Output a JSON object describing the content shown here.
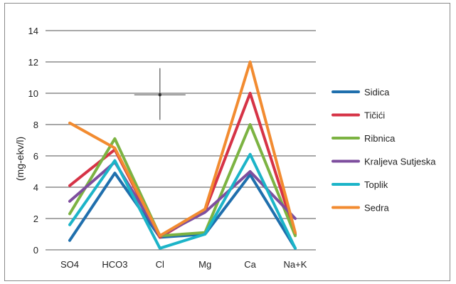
{
  "chart_data": {
    "type": "line",
    "title": "",
    "xlabel": "",
    "ylabel": "(mg-ekv/l)",
    "categories": [
      "SO4",
      "HCO3",
      "Cl",
      "Mg",
      "Ca",
      "Na+K"
    ],
    "ylim": [
      0,
      14
    ],
    "yticks": [
      0,
      2,
      4,
      6,
      8,
      10,
      12,
      14
    ],
    "grid": true,
    "legend_position": "right",
    "series": [
      {
        "name": "Sidica",
        "color": "#1f6fad",
        "values": [
          0.6,
          4.9,
          0.8,
          1.0,
          4.8,
          0.1
        ]
      },
      {
        "name": "Tičići",
        "color": "#d63346",
        "values": [
          4.1,
          6.4,
          0.8,
          2.5,
          10.0,
          1.0
        ]
      },
      {
        "name": "Ribnica",
        "color": "#7cb342",
        "values": [
          2.3,
          7.1,
          0.9,
          1.1,
          8.0,
          0.9
        ]
      },
      {
        "name": "Kraljeva Sutjeska",
        "color": "#7e4e9e",
        "values": [
          3.1,
          5.6,
          0.9,
          2.4,
          5.0,
          2.0
        ]
      },
      {
        "name": "Toplik",
        "color": "#1cb4c8",
        "values": [
          1.6,
          5.7,
          0.1,
          1.0,
          6.1,
          0.1
        ]
      },
      {
        "name": "Sedra",
        "color": "#f28b30",
        "values": [
          8.1,
          6.5,
          0.9,
          2.6,
          12.0,
          1.1
        ]
      }
    ],
    "annotation": {
      "type": "error-cross-marker",
      "category": "Cl",
      "y": 9.9,
      "y_range": [
        8.3,
        11.6
      ]
    }
  }
}
